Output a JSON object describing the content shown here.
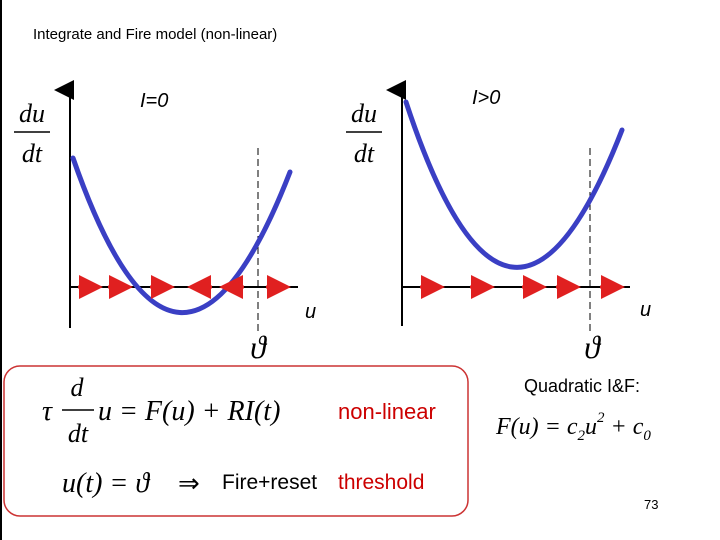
{
  "title": "Integrate and Fire model (non-linear)",
  "left_panel": {
    "current_label": "I=0",
    "ylabel_num": "du",
    "ylabel_den": "dt",
    "xlabel": "u",
    "threshold_symbol": "ϑ"
  },
  "right_panel": {
    "current_label": "I>0",
    "ylabel_num": "du",
    "ylabel_den": "dt",
    "xlabel": "u",
    "threshold_symbol": "ϑ"
  },
  "equations": {
    "eq1_tau": "τ",
    "eq1_d": "d",
    "eq1_dt": "dt",
    "eq1_rhs": "u = F(u) + RI(t)",
    "eq2_lhs": "u(t) = ϑ",
    "implies": "⇒",
    "nonlinear_label": "non-linear",
    "fire_reset_label": "Fire+reset",
    "threshold_label": "threshold",
    "quadratic_label": "Quadratic I&F:",
    "quadratic_eq_lhs": "F(u) = c",
    "quadratic_eq_sub2": "2",
    "quadratic_eq_mid": "u",
    "quadratic_eq_sup": "2",
    "quadratic_eq_plus": " + c",
    "quadratic_eq_sub0": "0"
  },
  "page_number": "73",
  "colors": {
    "curve": "#3a3fc4",
    "arrows": "#e02020",
    "box_border": "#cc3333",
    "text_red": "#cc0000"
  }
}
